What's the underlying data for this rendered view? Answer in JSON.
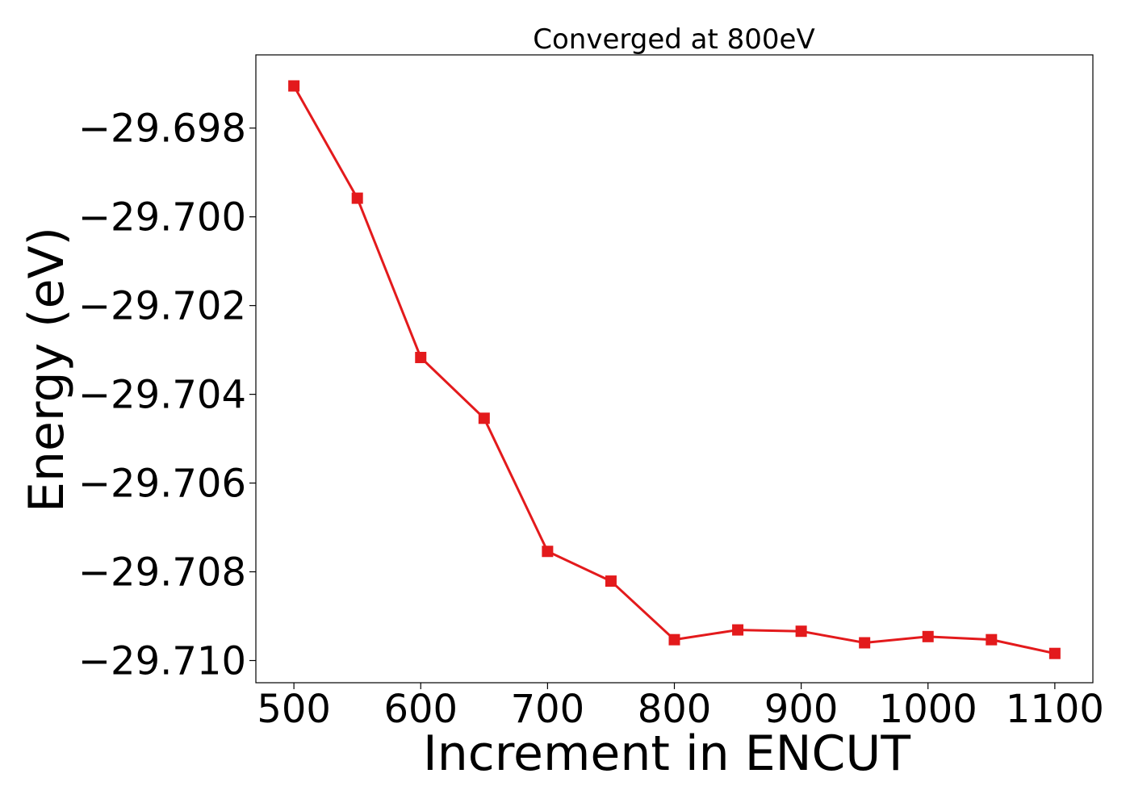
{
  "chart_data": {
    "type": "line",
    "title": "Converged at 800eV",
    "xlabel": "Increment in ENCUT",
    "ylabel": "Energy (eV)",
    "xlim": [
      470,
      1130
    ],
    "ylim": [
      -29.7105,
      -29.69635
    ],
    "xticks": [
      500,
      600,
      700,
      800,
      900,
      1000,
      1100
    ],
    "xtick_labels": [
      "500",
      "600",
      "700",
      "800",
      "900",
      "1000",
      "1100"
    ],
    "yticks": [
      -29.698,
      -29.7,
      -29.702,
      -29.704,
      -29.706,
      -29.708,
      -29.71
    ],
    "ytick_labels": [
      "−29.698",
      "−29.700",
      "−29.702",
      "−29.704",
      "−29.706",
      "−29.708",
      "−29.710"
    ],
    "grid": false,
    "colors": {
      "series": "#e31a1c"
    },
    "marker": "square",
    "series": [
      {
        "x": [
          500,
          550,
          600,
          650,
          700,
          750,
          800,
          850,
          900,
          950,
          1000,
          1050,
          1100
        ],
        "values": [
          -29.69705,
          -29.69958,
          -29.70317,
          -29.70454,
          -29.70754,
          -29.70821,
          -29.70953,
          -29.70931,
          -29.70934,
          -29.7096,
          -29.70946,
          -29.70953,
          -29.70984
        ]
      }
    ]
  }
}
